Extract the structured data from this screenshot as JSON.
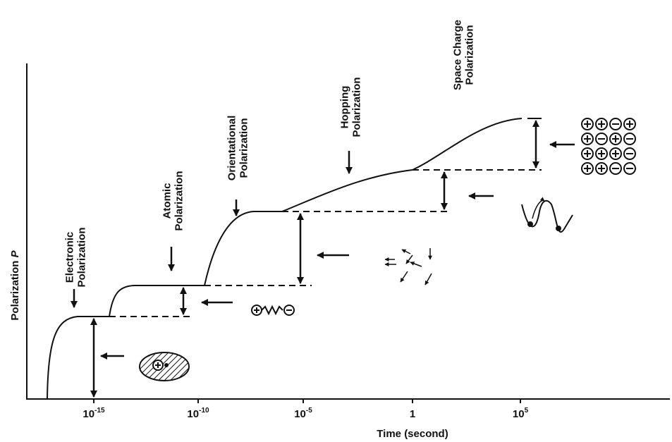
{
  "axes": {
    "y_label": {
      "main": "Polarization",
      "symbol": "P"
    },
    "x_label": "Time (second)",
    "x_ticks": [
      {
        "base": "10",
        "exp": "-15"
      },
      {
        "base": "10",
        "exp": "-10"
      },
      {
        "base": "10",
        "exp": "-5"
      },
      {
        "base": "1"
      },
      {
        "base": "10",
        "exp": "5"
      }
    ]
  },
  "labels": [
    {
      "lines": [
        "Electronic",
        "Polarization"
      ]
    },
    {
      "lines": [
        "Atomic",
        "Polarization"
      ]
    },
    {
      "lines": [
        "Orientational",
        "Polarization"
      ]
    },
    {
      "lines": [
        "Hopping",
        "Polarization"
      ]
    },
    {
      "lines": [
        "Space Charge",
        "Polarization"
      ]
    }
  ]
}
